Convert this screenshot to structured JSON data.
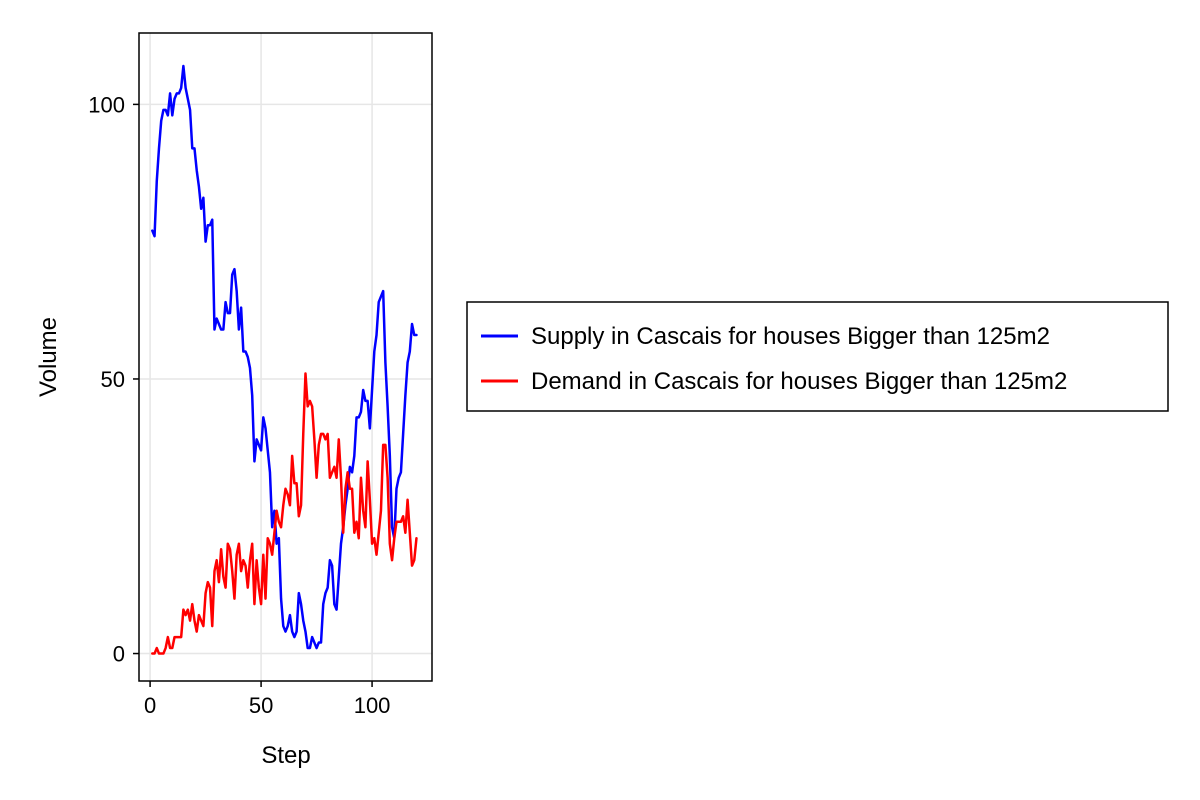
{
  "chart_data": {
    "type": "line",
    "xlabel": "Step",
    "ylabel": "Volume",
    "xlim": [
      -5,
      127
    ],
    "ylim": [
      -5,
      113
    ],
    "xticks": [
      0,
      50,
      100
    ],
    "yticks": [
      0,
      50,
      100
    ],
    "grid": true,
    "legend_placement": "right-center",
    "series": [
      {
        "name": "Supply in Cascais for houses Bigger than 125m2",
        "color": "#0000ff",
        "x": [
          1,
          2,
          3,
          4,
          5,
          6,
          7,
          8,
          9,
          10,
          11,
          12,
          13,
          14,
          15,
          16,
          17,
          18,
          19,
          20,
          21,
          22,
          23,
          24,
          25,
          26,
          27,
          28,
          29,
          30,
          31,
          32,
          33,
          34,
          35,
          36,
          37,
          38,
          39,
          40,
          41,
          42,
          43,
          44,
          45,
          46,
          47,
          48,
          49,
          50,
          51,
          52,
          53,
          54,
          55,
          56,
          57,
          58,
          59,
          60,
          61,
          62,
          63,
          64,
          65,
          66,
          67,
          68,
          69,
          70,
          71,
          72,
          73,
          74,
          75,
          76,
          77,
          78,
          79,
          80,
          81,
          82,
          83,
          84,
          85,
          86,
          87,
          88,
          89,
          90,
          91,
          92,
          93,
          94,
          95,
          96,
          97,
          98,
          99,
          100,
          101,
          102,
          103,
          104,
          105,
          106,
          107,
          108,
          109,
          110,
          111,
          112,
          113,
          114,
          115,
          116,
          117,
          118,
          119,
          120
        ],
        "y": [
          77,
          76,
          86,
          92,
          97,
          99,
          99,
          98,
          102,
          98,
          101,
          102,
          102,
          103,
          107,
          103,
          101,
          99,
          92,
          92,
          88,
          85,
          81,
          83,
          75,
          78,
          78,
          79,
          59,
          61,
          60,
          59,
          59,
          64,
          62,
          62,
          69,
          70,
          66,
          59,
          63,
          55,
          55,
          54,
          52,
          47,
          35,
          39,
          38,
          37,
          43,
          41,
          37,
          33,
          23,
          26,
          20,
          21,
          10,
          5,
          4,
          5,
          7,
          4,
          3,
          4,
          11,
          9,
          6,
          4,
          1,
          1,
          3,
          2,
          1,
          2,
          2,
          9,
          11,
          12,
          17,
          16,
          9,
          8,
          14,
          20,
          23,
          27,
          30,
          34,
          33,
          36,
          43,
          43,
          44,
          48,
          46,
          46,
          41,
          48,
          55,
          58,
          64,
          65,
          66,
          53,
          45,
          36,
          23,
          21,
          30,
          32,
          33,
          40,
          47,
          53,
          55,
          60,
          58,
          58
        ]
      },
      {
        "name": "Demand in Cascais for houses Bigger than 125m2",
        "color": "#ff0000",
        "x": [
          1,
          2,
          3,
          4,
          5,
          6,
          7,
          8,
          9,
          10,
          11,
          12,
          13,
          14,
          15,
          16,
          17,
          18,
          19,
          20,
          21,
          22,
          23,
          24,
          25,
          26,
          27,
          28,
          29,
          30,
          31,
          32,
          33,
          34,
          35,
          36,
          37,
          38,
          39,
          40,
          41,
          42,
          43,
          44,
          45,
          46,
          47,
          48,
          49,
          50,
          51,
          52,
          53,
          54,
          55,
          56,
          57,
          58,
          59,
          60,
          61,
          62,
          63,
          64,
          65,
          66,
          67,
          68,
          69,
          70,
          71,
          72,
          73,
          74,
          75,
          76,
          77,
          78,
          79,
          80,
          81,
          82,
          83,
          84,
          85,
          86,
          87,
          88,
          89,
          90,
          91,
          92,
          93,
          94,
          95,
          96,
          97,
          98,
          99,
          100,
          101,
          102,
          103,
          104,
          105,
          106,
          107,
          108,
          109,
          110,
          111,
          112,
          113,
          114,
          115,
          116,
          117,
          118,
          119,
          120
        ],
        "y": [
          0,
          0,
          1,
          0,
          0,
          0,
          1,
          3,
          1,
          1,
          3,
          3,
          3,
          3,
          8,
          7,
          8,
          6,
          9,
          6,
          4,
          7,
          6,
          5,
          11,
          13,
          12,
          5,
          15,
          17,
          13,
          19,
          14,
          12,
          20,
          19,
          15,
          10,
          18,
          20,
          15,
          17,
          16,
          12,
          17,
          20,
          9,
          17,
          12,
          9,
          18,
          10,
          21,
          20,
          18,
          22,
          26,
          24,
          23,
          27,
          30,
          29,
          27,
          36,
          31,
          31,
          25,
          27,
          40,
          51,
          45,
          46,
          45,
          39,
          32,
          38,
          40,
          40,
          39,
          40,
          32,
          33,
          34,
          32,
          39,
          32,
          22,
          30,
          33,
          30,
          30,
          22,
          24,
          21,
          32,
          26,
          23,
          35,
          28,
          20,
          21,
          18,
          22,
          26,
          38,
          38,
          32,
          20,
          17,
          21,
          24,
          24,
          24,
          25,
          22,
          28,
          22,
          16,
          17,
          21
        ]
      }
    ]
  }
}
